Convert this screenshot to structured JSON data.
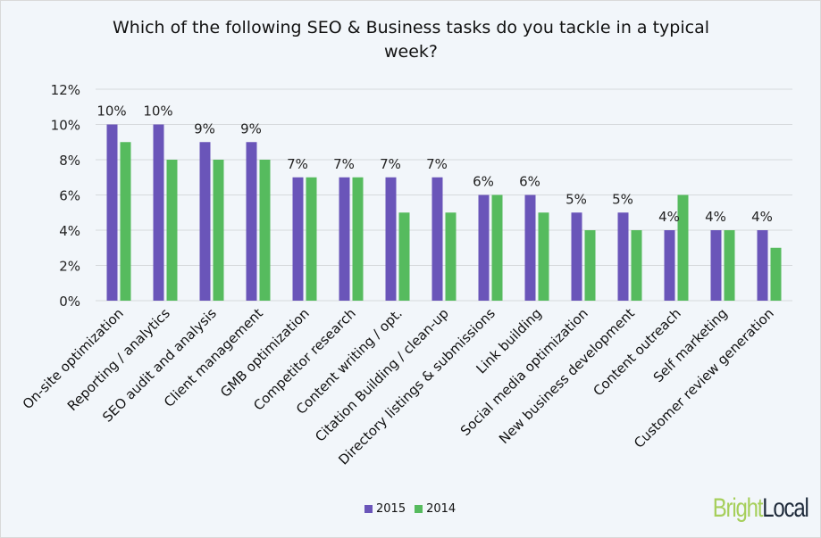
{
  "chart_data": {
    "type": "bar",
    "title": "Which of the following SEO & Business tasks do you tackle in a typical week?",
    "categories": [
      "On-site optimization",
      "Reporting / analytics",
      "SEO audit and analysis",
      "Client management",
      "GMB optimization",
      "Competitor research",
      "Content writing / opt.",
      "Citation Building / clean-up",
      "Directory listings & submissions",
      "Link building",
      "Social media optimization",
      "New business development",
      "Content outreach",
      "Self marketing",
      "Customer review generation"
    ],
    "series": [
      {
        "name": "2015",
        "color": "#6a55b9",
        "values": [
          10,
          10,
          9,
          9,
          7,
          7,
          7,
          7,
          6,
          6,
          5,
          5,
          4,
          4,
          4
        ]
      },
      {
        "name": "2014",
        "color": "#56bb5e",
        "values": [
          9,
          8,
          8,
          8,
          7,
          7,
          5,
          5,
          6,
          5,
          4,
          4,
          6,
          4,
          3
        ]
      }
    ],
    "data_labels_series": "2015",
    "ylim": [
      0,
      12
    ],
    "yticks": [
      0,
      2,
      4,
      6,
      8,
      10,
      12
    ],
    "ytick_format": "%",
    "grid": true,
    "legend": "bottom",
    "xlabel": "",
    "ylabel": ""
  },
  "logo": {
    "part1": "Bright",
    "part2": "Local",
    "color1": "#a6cf5b",
    "color2": "#1e2a3a"
  }
}
